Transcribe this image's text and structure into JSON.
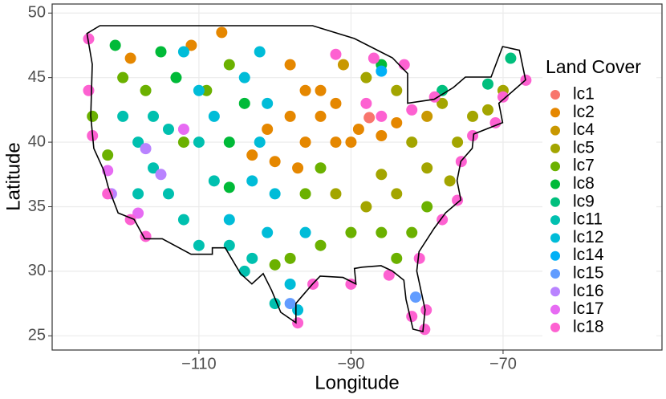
{
  "chart_data": {
    "type": "scatter",
    "x_label": "Longitude",
    "y_label": "Latitude",
    "legend_title": "Land Cover",
    "legend": "right",
    "grid": true,
    "xlim": [
      -129.3,
      -49.1
    ],
    "ylim": [
      23.9,
      50.7
    ],
    "xticks": [
      {
        "value": -110,
        "label": "−110"
      },
      {
        "value": -90,
        "label": "−90"
      },
      {
        "value": -70,
        "label": "−70"
      }
    ],
    "yticks": [
      25,
      30,
      35,
      40,
      45,
      50
    ],
    "series": [
      {
        "name": "lc1",
        "color": "#F8766D",
        "x": [
          -87.6
        ],
        "y": [
          41.9
        ]
      },
      {
        "name": "lc2",
        "color": "#E58700",
        "x": [
          -98,
          -96,
          -94,
          -92,
          -90,
          -98,
          -96,
          -100,
          -97,
          -94,
          -92,
          -89,
          -86,
          -111,
          -103,
          -101,
          -84,
          -119,
          -107
        ],
        "y": [
          46,
          44,
          42,
          40,
          40,
          42,
          40,
          38.5,
          38,
          44,
          43,
          41,
          40.5,
          47.5,
          39,
          41,
          41.5,
          46.5,
          48.5
        ]
      },
      {
        "name": "lc4",
        "color": "#C99800",
        "x": [
          -91,
          -80
        ],
        "y": [
          46,
          42
        ]
      },
      {
        "name": "lc5",
        "color": "#A3A500",
        "x": [
          -88,
          -84,
          -78,
          -74,
          -70,
          -80,
          -84,
          -92,
          -76,
          -82,
          -86,
          -88,
          -77,
          -72
        ],
        "y": [
          45,
          44,
          43,
          42,
          44,
          38,
          36,
          36,
          40,
          40,
          37.5,
          35,
          37,
          42.5
        ]
      },
      {
        "name": "lc7",
        "color": "#6BB100",
        "x": [
          -90,
          -86,
          -82,
          -94,
          -84,
          -80,
          -98,
          -100,
          -120,
          -117,
          -106,
          -112,
          -109,
          -124,
          -122,
          -96,
          -94
        ],
        "y": [
          33,
          33,
          33,
          32,
          31,
          35,
          31,
          30.5,
          45,
          44,
          46,
          40,
          44,
          42,
          39,
          36,
          38
        ]
      },
      {
        "name": "lc8",
        "color": "#00BA38",
        "x": [
          -115,
          -113,
          -106,
          -104,
          -86,
          -121,
          -106
        ],
        "y": [
          47,
          45,
          40,
          43,
          46,
          47.5,
          36.5
        ]
      },
      {
        "name": "lc9",
        "color": "#00BF7D",
        "x": [
          -69,
          -72,
          -78
        ],
        "y": [
          46.5,
          44.5,
          44
        ]
      },
      {
        "name": "lc11",
        "color": "#00C0AF",
        "x": [
          -118,
          -116,
          -114,
          -112,
          -110,
          -106,
          -104,
          -108,
          -110,
          -116,
          -120,
          -118,
          -114,
          -103,
          -100
        ],
        "y": [
          40,
          38,
          36,
          34,
          32,
          32,
          30,
          37,
          40,
          42,
          42,
          36,
          41,
          31,
          27.5
        ]
      },
      {
        "name": "lc12",
        "color": "#00BCD8",
        "x": [
          -102,
          -104,
          -101,
          -102,
          -100,
          -101,
          -98,
          -108,
          -112,
          -106,
          -96,
          -110,
          -103,
          -97
        ],
        "y": [
          47,
          45,
          43,
          40,
          36,
          33,
          29,
          42,
          47,
          34,
          33,
          44,
          37,
          27
        ]
      },
      {
        "name": "lc14",
        "color": "#00B0F6",
        "x": [
          -86
        ],
        "y": [
          45.5
        ]
      },
      {
        "name": "lc15",
        "color": "#619CFF",
        "x": [
          -98,
          -81.5
        ],
        "y": [
          27.5,
          28
        ]
      },
      {
        "name": "lc16",
        "color": "#B983FF",
        "x": [
          -117,
          -115,
          -121.5
        ],
        "y": [
          39.5,
          37.5,
          36
        ]
      },
      {
        "name": "lc17",
        "color": "#E76BF3",
        "x": [
          -112,
          -118,
          -122
        ],
        "y": [
          41,
          34.5,
          37.8
        ]
      },
      {
        "name": "lc18",
        "color": "#FD61D1",
        "x": [
          -124.5,
          -124.5,
          -124,
          -122,
          -119,
          -117,
          -97,
          -95,
          -90,
          -85,
          -82,
          -80.3,
          -80.1,
          -81,
          -78,
          -76,
          -75.5,
          -74,
          -71,
          -70,
          -67,
          -83,
          -88,
          -86,
          -82,
          -79,
          -92,
          -87
        ],
        "y": [
          48,
          44,
          40.5,
          36,
          34,
          32.7,
          26,
          29,
          29,
          29.7,
          26.5,
          25.5,
          27,
          31,
          34,
          35.5,
          38.5,
          40.5,
          41.5,
          43.5,
          44.8,
          46,
          43,
          42,
          42.5,
          43.5,
          46.8,
          46.5
        ]
      }
    ]
  }
}
